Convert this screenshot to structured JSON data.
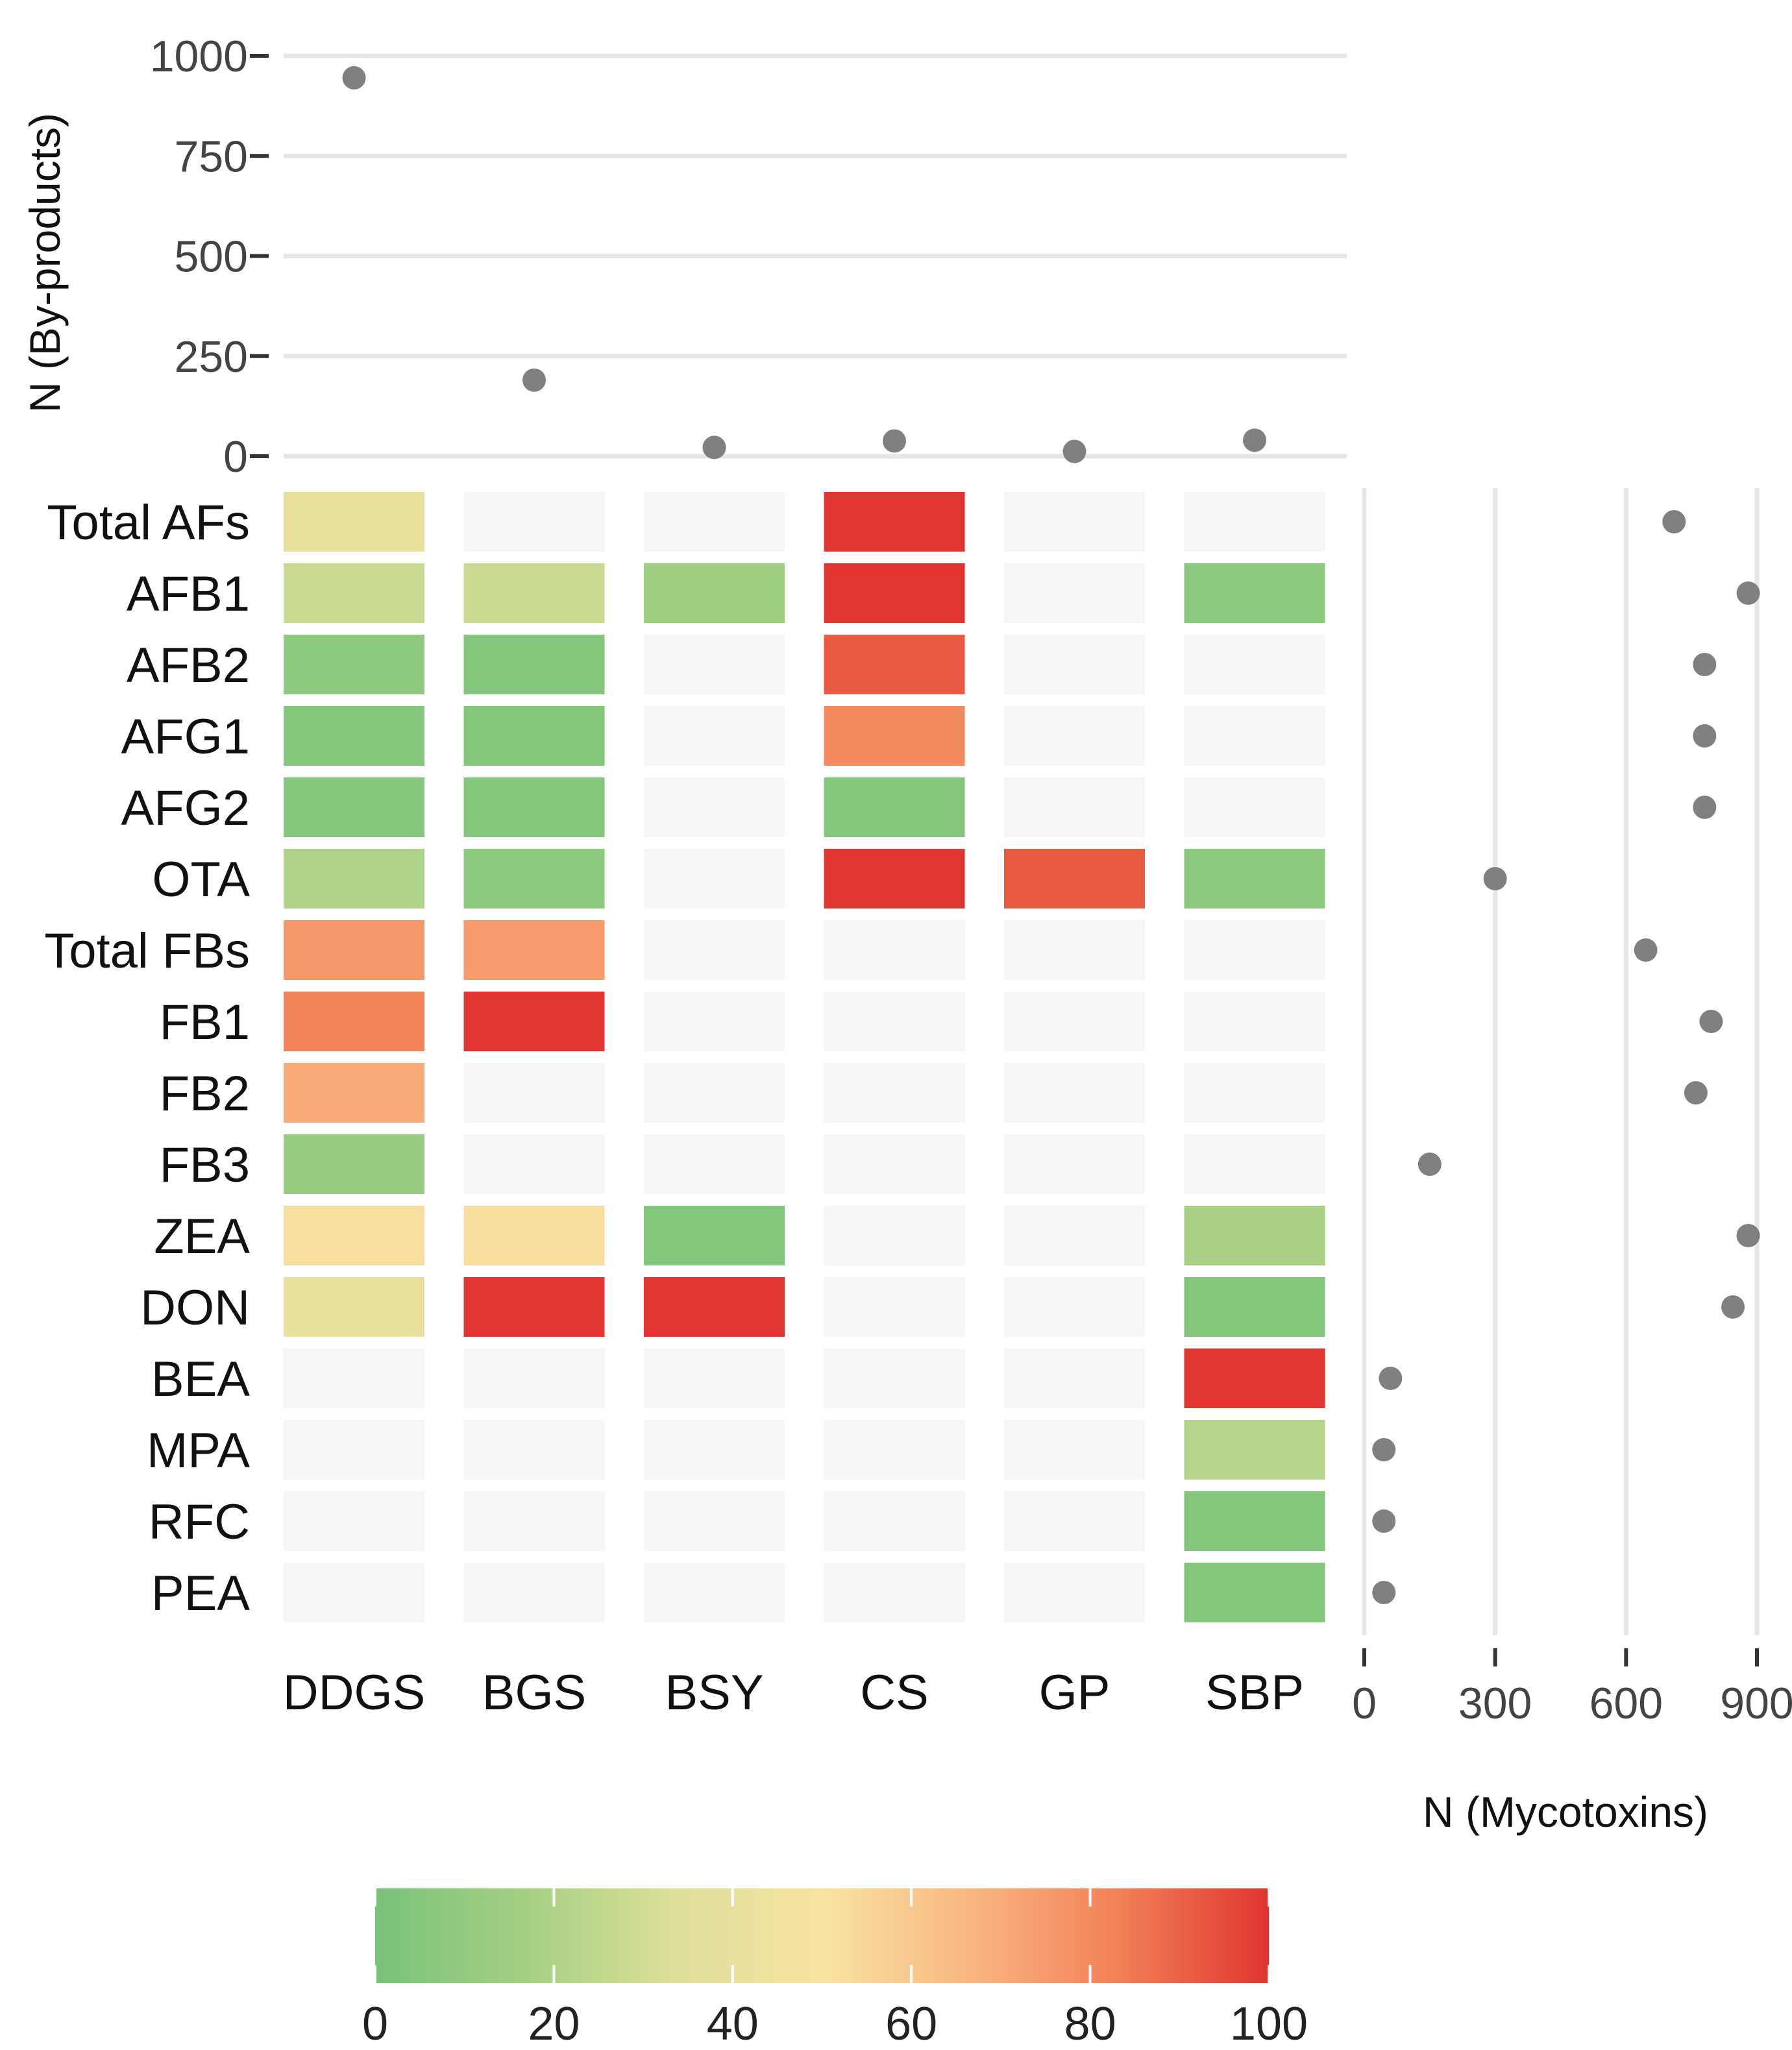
{
  "chart_data": {
    "type": "heatmap",
    "columns": [
      "DDGS",
      "BGS",
      "BSY",
      "CS",
      "GP",
      "SBP"
    ],
    "rows": [
      "Total AFs",
      "AFB1",
      "AFB2",
      "AFG1",
      "AFG2",
      "OTA",
      "Total FBs",
      "FB1",
      "FB2",
      "FB3",
      "ZEA",
      "DON",
      "BEA",
      "MPA",
      "RFC",
      "PEA"
    ],
    "values": [
      [
        40,
        null,
        null,
        100,
        null,
        null
      ],
      [
        28,
        28,
        15,
        100,
        null,
        8
      ],
      [
        8,
        5,
        null,
        92,
        null,
        null
      ],
      [
        5,
        5,
        null,
        80,
        null,
        null
      ],
      [
        5,
        5,
        null,
        5,
        null,
        null
      ],
      [
        20,
        8,
        null,
        100,
        92,
        8
      ],
      [
        76,
        75,
        null,
        null,
        null,
        null
      ],
      [
        82,
        100,
        null,
        null,
        null,
        null
      ],
      [
        70,
        null,
        null,
        null,
        null,
        null
      ],
      [
        12,
        null,
        null,
        null,
        null,
        null
      ],
      [
        52,
        53,
        5,
        null,
        null,
        18
      ],
      [
        42,
        100,
        100,
        null,
        null,
        5
      ],
      [
        null,
        null,
        null,
        null,
        null,
        100
      ],
      [
        null,
        null,
        null,
        null,
        null,
        22
      ],
      [
        null,
        null,
        null,
        null,
        null,
        5
      ],
      [
        null,
        null,
        null,
        null,
        null,
        5
      ]
    ],
    "top_panel": {
      "ylabel": "N (By-products)",
      "ylim": [
        0,
        1000
      ],
      "yticks": [
        0,
        250,
        500,
        750,
        1000
      ],
      "ytick_labels": [
        "0",
        "250",
        "500",
        "750",
        "1000"
      ],
      "values": [
        945,
        190,
        22,
        38,
        12,
        40
      ]
    },
    "right_panel": {
      "xlabel": "N (Mycotoxins)",
      "xlim": [
        0,
        900
      ],
      "xticks": [
        0,
        300,
        600,
        900
      ],
      "xtick_labels": [
        "0",
        "300",
        "600",
        "900"
      ],
      "values": [
        710,
        880,
        780,
        780,
        780,
        300,
        645,
        795,
        760,
        150,
        880,
        845,
        60,
        45,
        45,
        45
      ]
    },
    "legend": {
      "range": [
        0,
        100
      ],
      "ticks": [
        0,
        20,
        40,
        60,
        80,
        100
      ],
      "tick_labels": [
        "0",
        "20",
        "40",
        "60",
        "80",
        "100"
      ],
      "colors": [
        "#78c27a",
        "#a4d083",
        "#dddf9a",
        "#f8e3a4",
        "#f9b680",
        "#f28057",
        "#e03530"
      ]
    },
    "empty_color": "#f6f6f6"
  }
}
